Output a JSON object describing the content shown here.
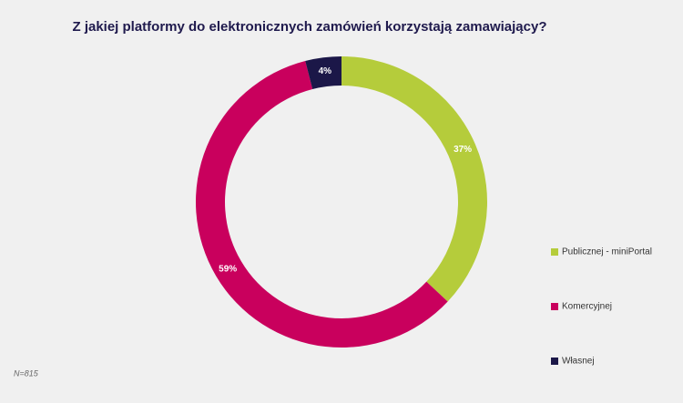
{
  "chart_data": {
    "type": "donut",
    "title": "Z jakiej platformy do elektronicznych zamówień korzystają zamawiający?",
    "categories": [
      "Publicznej - miniPortal",
      "Komercyjnej",
      "Własnej"
    ],
    "values": [
      37,
      59,
      4
    ],
    "value_labels": [
      "37%",
      "59%",
      "4%"
    ],
    "colors": [
      "#b5cc3b",
      "#c9005d",
      "#1b1748"
    ],
    "note": "N=815"
  }
}
